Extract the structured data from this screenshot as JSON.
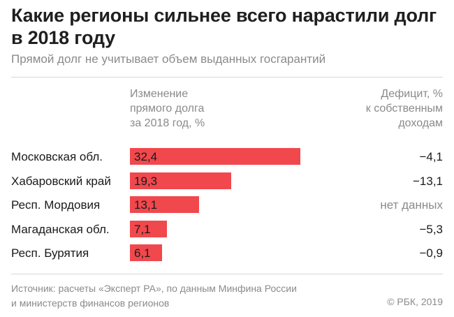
{
  "title": "Какие регионы сильнее всего нарастили долг в 2018 году",
  "subtitle": "Прямой долг не учитывает объем выданных госгарантий",
  "col_left": [
    "Изменение",
    "прямого долга",
    "за 2018 год, %"
  ],
  "col_right": [
    "Дефицит, %",
    "к собственным",
    "доходам"
  ],
  "source": [
    "Источник: расчеты «Эксперт РА», по данным Минфина России",
    "и министерств финансов регионов"
  ],
  "copyright": "© РБК, 2019",
  "chart_data": {
    "type": "bar",
    "orientation": "horizontal",
    "title": "Какие регионы сильнее всего нарастили долг в 2018 году",
    "subtitle": "Прямой долг не учитывает объем выданных госгарантий",
    "categories": [
      "Московская обл.",
      "Хабаровский край",
      "Респ. Мордовия",
      "Магаданская обл.",
      "Респ. Бурятия"
    ],
    "values": [
      32.4,
      19.3,
      13.1,
      7.1,
      6.1
    ],
    "value_labels": [
      "32,4",
      "19,3",
      "13,1",
      "7,1",
      "6,1"
    ],
    "deficit_labels": [
      "−4,1",
      "−13,1",
      "нет данных",
      "−5,3",
      "−0,9"
    ],
    "bar_color": "#f0484d",
    "xlim": [
      0,
      32.4
    ],
    "grid": false
  }
}
